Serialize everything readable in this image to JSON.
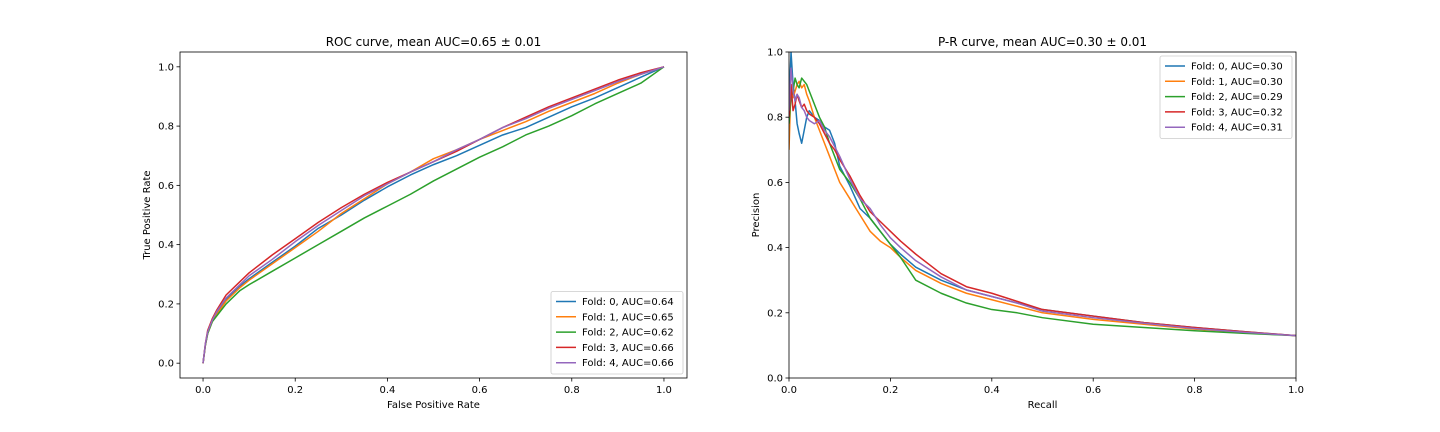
{
  "chart_data": [
    {
      "type": "line",
      "title": "ROC curve, mean AUC=0.65 ± 0.01",
      "xlabel": "False Positive Rate",
      "ylabel": "True Positive Rate",
      "xlim": [
        -0.05,
        1.05
      ],
      "ylim": [
        -0.05,
        1.05
      ],
      "xticks": [
        "0.0",
        "0.2",
        "0.4",
        "0.6",
        "0.8",
        "1.0"
      ],
      "yticks": [
        "0.0",
        "0.2",
        "0.4",
        "0.6",
        "0.8",
        "1.0"
      ],
      "grid": false,
      "legend_position": "lower-right",
      "series": [
        {
          "name": "Fold: 0, AUC=0.64",
          "color": "#1f77b4",
          "x": [
            0,
            0.005,
            0.01,
            0.02,
            0.03,
            0.05,
            0.08,
            0.1,
            0.15,
            0.2,
            0.25,
            0.3,
            0.35,
            0.4,
            0.45,
            0.5,
            0.55,
            0.6,
            0.65,
            0.7,
            0.75,
            0.8,
            0.85,
            0.9,
            0.95,
            1.0
          ],
          "y": [
            0,
            0.06,
            0.1,
            0.145,
            0.17,
            0.215,
            0.26,
            0.285,
            0.34,
            0.395,
            0.455,
            0.5,
            0.55,
            0.595,
            0.635,
            0.67,
            0.7,
            0.735,
            0.77,
            0.795,
            0.83,
            0.865,
            0.895,
            0.93,
            0.965,
            1.0
          ]
        },
        {
          "name": "Fold: 1, AUC=0.65",
          "color": "#ff7f0e",
          "x": [
            0,
            0.005,
            0.01,
            0.02,
            0.03,
            0.05,
            0.08,
            0.1,
            0.15,
            0.2,
            0.25,
            0.3,
            0.35,
            0.4,
            0.45,
            0.5,
            0.55,
            0.6,
            0.65,
            0.7,
            0.75,
            0.8,
            0.85,
            0.9,
            0.95,
            1.0
          ],
          "y": [
            0,
            0.06,
            0.1,
            0.14,
            0.165,
            0.21,
            0.255,
            0.28,
            0.335,
            0.39,
            0.445,
            0.505,
            0.555,
            0.605,
            0.645,
            0.69,
            0.72,
            0.755,
            0.785,
            0.815,
            0.85,
            0.88,
            0.91,
            0.945,
            0.975,
            1.0
          ]
        },
        {
          "name": "Fold: 2, AUC=0.62",
          "color": "#2ca02c",
          "x": [
            0,
            0.005,
            0.01,
            0.02,
            0.03,
            0.05,
            0.08,
            0.1,
            0.15,
            0.2,
            0.25,
            0.3,
            0.35,
            0.4,
            0.45,
            0.5,
            0.55,
            0.6,
            0.65,
            0.7,
            0.75,
            0.8,
            0.85,
            0.9,
            0.95,
            1.0
          ],
          "y": [
            0,
            0.06,
            0.1,
            0.14,
            0.16,
            0.2,
            0.245,
            0.265,
            0.31,
            0.355,
            0.4,
            0.445,
            0.49,
            0.53,
            0.57,
            0.615,
            0.655,
            0.695,
            0.73,
            0.77,
            0.8,
            0.835,
            0.875,
            0.91,
            0.945,
            1.0
          ]
        },
        {
          "name": "Fold: 3, AUC=0.66",
          "color": "#d62728",
          "x": [
            0,
            0.005,
            0.01,
            0.02,
            0.03,
            0.05,
            0.08,
            0.1,
            0.15,
            0.2,
            0.25,
            0.3,
            0.35,
            0.4,
            0.45,
            0.5,
            0.55,
            0.6,
            0.65,
            0.7,
            0.75,
            0.8,
            0.85,
            0.9,
            0.95,
            1.0
          ],
          "y": [
            0,
            0.065,
            0.11,
            0.15,
            0.18,
            0.23,
            0.275,
            0.305,
            0.365,
            0.42,
            0.475,
            0.525,
            0.57,
            0.61,
            0.645,
            0.68,
            0.715,
            0.755,
            0.795,
            0.83,
            0.865,
            0.895,
            0.925,
            0.955,
            0.98,
            1.0
          ]
        },
        {
          "name": "Fold: 4, AUC=0.66",
          "color": "#9467bd",
          "x": [
            0,
            0.005,
            0.01,
            0.02,
            0.03,
            0.05,
            0.08,
            0.1,
            0.15,
            0.2,
            0.25,
            0.3,
            0.35,
            0.4,
            0.45,
            0.5,
            0.55,
            0.6,
            0.65,
            0.7,
            0.75,
            0.8,
            0.85,
            0.9,
            0.95,
            1.0
          ],
          "y": [
            0,
            0.065,
            0.105,
            0.145,
            0.175,
            0.22,
            0.265,
            0.295,
            0.35,
            0.41,
            0.465,
            0.515,
            0.565,
            0.605,
            0.645,
            0.68,
            0.72,
            0.755,
            0.795,
            0.825,
            0.86,
            0.89,
            0.92,
            0.95,
            0.975,
            1.0
          ]
        }
      ]
    },
    {
      "type": "line",
      "title": "P-R curve, mean AUC=0.30 ± 0.01",
      "xlabel": "Recall",
      "ylabel": "Precision",
      "xlim": [
        0.0,
        1.0
      ],
      "ylim": [
        0.0,
        1.0
      ],
      "xticks": [
        "0.0",
        "0.2",
        "0.4",
        "0.6",
        "0.8",
        "1.0"
      ],
      "yticks": [
        "0.0",
        "0.2",
        "0.4",
        "0.6",
        "0.8",
        "1.0"
      ],
      "grid": false,
      "legend_position": "upper-right",
      "series": [
        {
          "name": "Fold: 0, AUC=0.30",
          "color": "#1f77b4",
          "x": [
            0.0,
            0.004,
            0.008,
            0.012,
            0.016,
            0.02,
            0.025,
            0.03,
            0.035,
            0.04,
            0.05,
            0.06,
            0.07,
            0.08,
            0.09,
            0.1,
            0.12,
            0.14,
            0.16,
            0.18,
            0.2,
            0.22,
            0.25,
            0.3,
            0.35,
            0.4,
            0.45,
            0.5,
            0.6,
            0.7,
            0.8,
            0.9,
            1.0
          ],
          "y": [
            0.85,
            1.0,
            0.9,
            0.85,
            0.78,
            0.75,
            0.72,
            0.76,
            0.8,
            0.82,
            0.8,
            0.79,
            0.77,
            0.76,
            0.72,
            0.65,
            0.59,
            0.52,
            0.49,
            0.45,
            0.41,
            0.38,
            0.34,
            0.3,
            0.27,
            0.25,
            0.23,
            0.21,
            0.19,
            0.17,
            0.155,
            0.142,
            0.13
          ]
        },
        {
          "name": "Fold: 1, AUC=0.30",
          "color": "#ff7f0e",
          "x": [
            0.0,
            0.004,
            0.008,
            0.012,
            0.016,
            0.02,
            0.025,
            0.03,
            0.035,
            0.04,
            0.05,
            0.06,
            0.07,
            0.08,
            0.09,
            0.1,
            0.12,
            0.14,
            0.16,
            0.18,
            0.2,
            0.22,
            0.25,
            0.3,
            0.35,
            0.4,
            0.45,
            0.5,
            0.6,
            0.7,
            0.8,
            0.9,
            1.0
          ],
          "y": [
            0.7,
            0.9,
            0.86,
            0.88,
            0.9,
            0.91,
            0.89,
            0.9,
            0.87,
            0.85,
            0.8,
            0.76,
            0.72,
            0.68,
            0.64,
            0.6,
            0.55,
            0.5,
            0.45,
            0.42,
            0.4,
            0.37,
            0.33,
            0.29,
            0.26,
            0.24,
            0.22,
            0.2,
            0.18,
            0.165,
            0.15,
            0.14,
            0.13
          ]
        },
        {
          "name": "Fold: 2, AUC=0.29",
          "color": "#2ca02c",
          "x": [
            0.0,
            0.004,
            0.008,
            0.012,
            0.016,
            0.02,
            0.025,
            0.03,
            0.035,
            0.04,
            0.05,
            0.06,
            0.07,
            0.08,
            0.09,
            0.1,
            0.12,
            0.14,
            0.16,
            0.18,
            0.2,
            0.22,
            0.25,
            0.3,
            0.35,
            0.4,
            0.45,
            0.5,
            0.6,
            0.7,
            0.8,
            0.9,
            1.0
          ],
          "y": [
            0.78,
            0.86,
            0.88,
            0.92,
            0.9,
            0.89,
            0.92,
            0.91,
            0.9,
            0.88,
            0.84,
            0.8,
            0.77,
            0.72,
            0.68,
            0.64,
            0.6,
            0.55,
            0.49,
            0.45,
            0.41,
            0.37,
            0.3,
            0.26,
            0.23,
            0.21,
            0.2,
            0.185,
            0.165,
            0.155,
            0.145,
            0.137,
            0.13
          ]
        },
        {
          "name": "Fold: 3, AUC=0.32",
          "color": "#d62728",
          "x": [
            0.0,
            0.004,
            0.008,
            0.012,
            0.016,
            0.02,
            0.025,
            0.03,
            0.035,
            0.04,
            0.05,
            0.06,
            0.07,
            0.08,
            0.09,
            0.1,
            0.12,
            0.14,
            0.16,
            0.18,
            0.2,
            0.22,
            0.25,
            0.3,
            0.35,
            0.4,
            0.45,
            0.5,
            0.6,
            0.7,
            0.8,
            0.9,
            1.0
          ],
          "y": [
            0.8,
            0.9,
            0.82,
            0.84,
            0.87,
            0.85,
            0.83,
            0.84,
            0.82,
            0.81,
            0.8,
            0.78,
            0.75,
            0.72,
            0.7,
            0.67,
            0.62,
            0.56,
            0.51,
            0.48,
            0.45,
            0.42,
            0.38,
            0.32,
            0.28,
            0.26,
            0.235,
            0.21,
            0.19,
            0.17,
            0.155,
            0.142,
            0.13
          ]
        },
        {
          "name": "Fold: 4, AUC=0.31",
          "color": "#9467bd",
          "x": [
            0.0,
            0.004,
            0.008,
            0.012,
            0.016,
            0.02,
            0.025,
            0.03,
            0.035,
            0.04,
            0.05,
            0.06,
            0.07,
            0.08,
            0.09,
            0.1,
            0.12,
            0.14,
            0.16,
            0.18,
            0.2,
            0.22,
            0.25,
            0.3,
            0.35,
            0.4,
            0.45,
            0.5,
            0.6,
            0.7,
            0.8,
            0.9,
            1.0
          ],
          "y": [
            0.82,
            0.95,
            0.88,
            0.85,
            0.87,
            0.86,
            0.83,
            0.82,
            0.8,
            0.79,
            0.78,
            0.79,
            0.76,
            0.74,
            0.71,
            0.68,
            0.61,
            0.55,
            0.52,
            0.47,
            0.43,
            0.4,
            0.36,
            0.31,
            0.27,
            0.25,
            0.23,
            0.205,
            0.185,
            0.168,
            0.152,
            0.14,
            0.13
          ]
        }
      ]
    }
  ]
}
